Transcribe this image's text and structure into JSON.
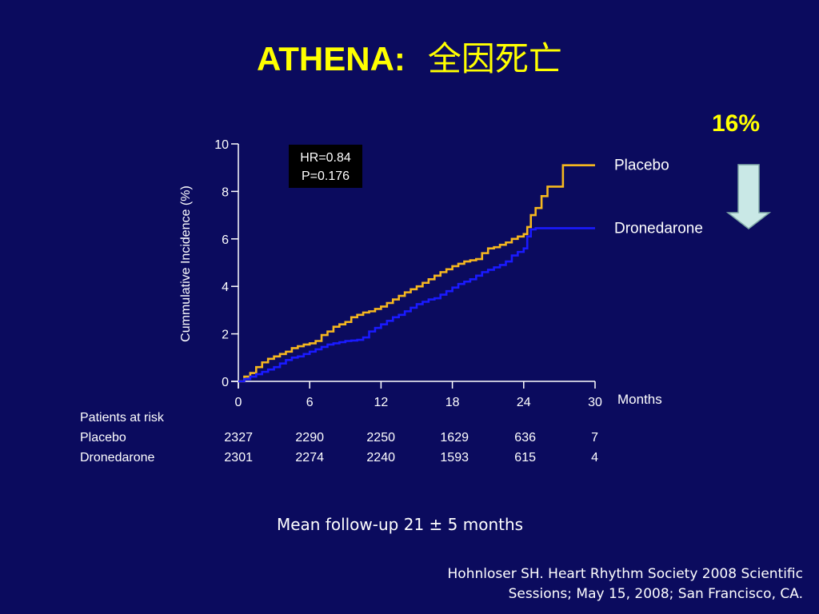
{
  "slide": {
    "title": "ATHENA:",
    "title_cn": "全因死亡",
    "reduction": "16%",
    "followup": "Mean follow-up 21 ± 5 months",
    "citation_line1": "Hohnloser SH. Heart Rhythm Society 2008 Scientific",
    "citation_line2": "Sessions; May 15, 2008; San Francisco, CA."
  },
  "colors": {
    "background": "#0b0b5e",
    "title": "#ffff00",
    "placebo": "#f5b71f",
    "dronedarone": "#1a1aff",
    "arrow": "#c9e8e6"
  },
  "chart_data": {
    "type": "line",
    "ylabel": "Cummulative Incidence (%)",
    "xlabel": "Months",
    "xlim": [
      0,
      30
    ],
    "ylim": [
      0,
      10
    ],
    "xticks": [
      0,
      6,
      12,
      18,
      24,
      30
    ],
    "yticks": [
      0,
      2,
      4,
      6,
      8,
      10
    ],
    "annotation": {
      "hr": "HR=0.84",
      "p": "P=0.176"
    },
    "series": [
      {
        "name": "Placebo",
        "points": [
          [
            0,
            0
          ],
          [
            0.5,
            0.2
          ],
          [
            1,
            0.35
          ],
          [
            1.5,
            0.6
          ],
          [
            2,
            0.8
          ],
          [
            2.5,
            0.95
          ],
          [
            3,
            1.05
          ],
          [
            3.5,
            1.15
          ],
          [
            4,
            1.25
          ],
          [
            4.5,
            1.4
          ],
          [
            5,
            1.48
          ],
          [
            5.5,
            1.55
          ],
          [
            6,
            1.6
          ],
          [
            6.5,
            1.7
          ],
          [
            7,
            1.95
          ],
          [
            7.5,
            2.1
          ],
          [
            8,
            2.3
          ],
          [
            8.5,
            2.4
          ],
          [
            9,
            2.5
          ],
          [
            9.5,
            2.7
          ],
          [
            10,
            2.8
          ],
          [
            10.5,
            2.9
          ],
          [
            11,
            2.95
          ],
          [
            11.5,
            3.05
          ],
          [
            12,
            3.15
          ],
          [
            12.5,
            3.3
          ],
          [
            13,
            3.45
          ],
          [
            13.5,
            3.6
          ],
          [
            14,
            3.75
          ],
          [
            14.5,
            3.88
          ],
          [
            15,
            4.0
          ],
          [
            15.5,
            4.15
          ],
          [
            16,
            4.3
          ],
          [
            16.5,
            4.45
          ],
          [
            17,
            4.6
          ],
          [
            17.5,
            4.72
          ],
          [
            18,
            4.85
          ],
          [
            18.5,
            4.95
          ],
          [
            19,
            5.05
          ],
          [
            19.5,
            5.1
          ],
          [
            20,
            5.15
          ],
          [
            20.5,
            5.4
          ],
          [
            21,
            5.6
          ],
          [
            21.5,
            5.65
          ],
          [
            22,
            5.75
          ],
          [
            22.5,
            5.85
          ],
          [
            23,
            6.0
          ],
          [
            23.5,
            6.1
          ],
          [
            24,
            6.2
          ],
          [
            24.3,
            6.5
          ],
          [
            24.6,
            7.0
          ],
          [
            25,
            7.3
          ],
          [
            25.5,
            7.8
          ],
          [
            26,
            8.2
          ],
          [
            27,
            8.2
          ],
          [
            27.3,
            9.1
          ],
          [
            30,
            9.1
          ]
        ],
        "end_label": "Placebo"
      },
      {
        "name": "Dronedarone",
        "points": [
          [
            0,
            0
          ],
          [
            0.5,
            0.1
          ],
          [
            1,
            0.2
          ],
          [
            1.5,
            0.3
          ],
          [
            2,
            0.4
          ],
          [
            2.5,
            0.5
          ],
          [
            3,
            0.6
          ],
          [
            3.5,
            0.75
          ],
          [
            4,
            0.9
          ],
          [
            4.5,
            1.0
          ],
          [
            5,
            1.05
          ],
          [
            5.5,
            1.15
          ],
          [
            6,
            1.25
          ],
          [
            6.5,
            1.35
          ],
          [
            7,
            1.45
          ],
          [
            7.5,
            1.55
          ],
          [
            8,
            1.6
          ],
          [
            8.5,
            1.65
          ],
          [
            9,
            1.7
          ],
          [
            9.5,
            1.72
          ],
          [
            10,
            1.75
          ],
          [
            10.5,
            1.85
          ],
          [
            11,
            2.1
          ],
          [
            11.5,
            2.25
          ],
          [
            12,
            2.4
          ],
          [
            12.5,
            2.55
          ],
          [
            13,
            2.7
          ],
          [
            13.5,
            2.8
          ],
          [
            14,
            2.95
          ],
          [
            14.5,
            3.1
          ],
          [
            15,
            3.25
          ],
          [
            15.5,
            3.35
          ],
          [
            16,
            3.45
          ],
          [
            16.5,
            3.5
          ],
          [
            17,
            3.65
          ],
          [
            17.5,
            3.8
          ],
          [
            18,
            3.95
          ],
          [
            18.5,
            4.1
          ],
          [
            19,
            4.2
          ],
          [
            19.5,
            4.3
          ],
          [
            20,
            4.45
          ],
          [
            20.5,
            4.6
          ],
          [
            21,
            4.7
          ],
          [
            21.5,
            4.8
          ],
          [
            22,
            4.9
          ],
          [
            22.5,
            5.05
          ],
          [
            23,
            5.3
          ],
          [
            23.5,
            5.45
          ],
          [
            24,
            5.6
          ],
          [
            24.3,
            6.1
          ],
          [
            24.6,
            6.4
          ],
          [
            25,
            6.45
          ],
          [
            30,
            6.45
          ]
        ],
        "end_label": "Dronedarone"
      }
    ]
  },
  "risk_table": {
    "header": "Patients at risk",
    "rows": [
      {
        "label": "Placebo",
        "values": [
          "2327",
          "2290",
          "2250",
          "1629",
          "636",
          "7"
        ]
      },
      {
        "label": "Dronedarone",
        "values": [
          "2301",
          "2274",
          "2240",
          "1593",
          "615",
          "4"
        ]
      }
    ]
  }
}
